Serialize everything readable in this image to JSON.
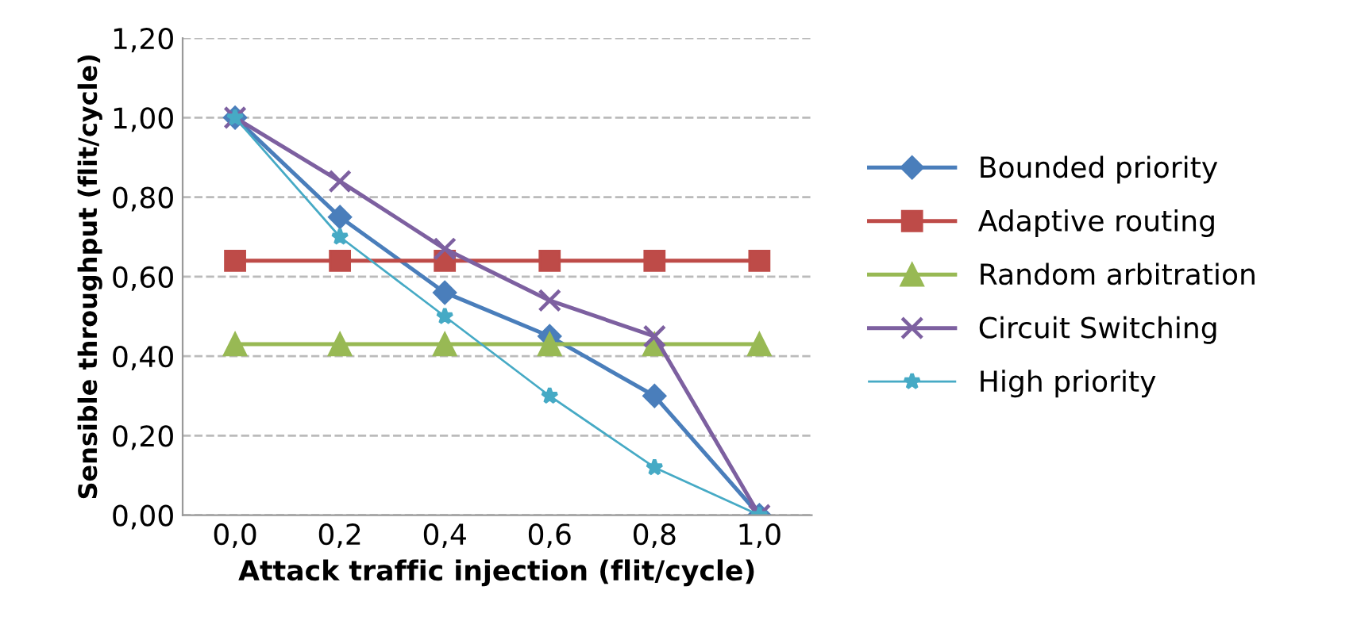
{
  "chart_data": {
    "type": "line",
    "xlabel": "Attack traffic injection (flit/cycle)",
    "ylabel": "Sensible throughput (flit/cycle)",
    "categories": [
      "0,0",
      "0,2",
      "0,4",
      "0,6",
      "0,8",
      "1,0"
    ],
    "series": [
      {
        "name": "Bounded priority",
        "color": "#4a7ebb",
        "marker": "diamond",
        "values": [
          1.0,
          0.75,
          0.56,
          0.45,
          0.3,
          0.0
        ]
      },
      {
        "name": "Adaptive routing",
        "color": "#be4b48",
        "marker": "square",
        "values": [
          0.64,
          0.64,
          0.64,
          0.64,
          0.64,
          0.64
        ]
      },
      {
        "name": "Random arbitration",
        "color": "#98b954",
        "marker": "triangle",
        "values": [
          0.43,
          0.43,
          0.43,
          0.43,
          0.43,
          0.43
        ]
      },
      {
        "name": "Circuit Switching",
        "color": "#7d60a0",
        "marker": "cross",
        "values": [
          1.0,
          0.84,
          0.67,
          0.54,
          0.45,
          0.0
        ]
      },
      {
        "name": "High priority",
        "color": "#46aac5",
        "marker": "star",
        "values": [
          1.0,
          0.7,
          0.5,
          0.3,
          0.12,
          0.0
        ]
      }
    ],
    "ylim": [
      0,
      1.2
    ],
    "yticks": [
      {
        "value": 0,
        "label": "0,00"
      },
      {
        "value": 0.2,
        "label": "0,20"
      },
      {
        "value": 0.4,
        "label": "0,40"
      },
      {
        "value": 0.6,
        "label": "0,60"
      },
      {
        "value": 0.8,
        "label": "0,80"
      },
      {
        "value": 1.0,
        "label": "1,00"
      },
      {
        "value": 1.2,
        "label": "1,20"
      }
    ],
    "grid": "y",
    "legend": "right"
  }
}
